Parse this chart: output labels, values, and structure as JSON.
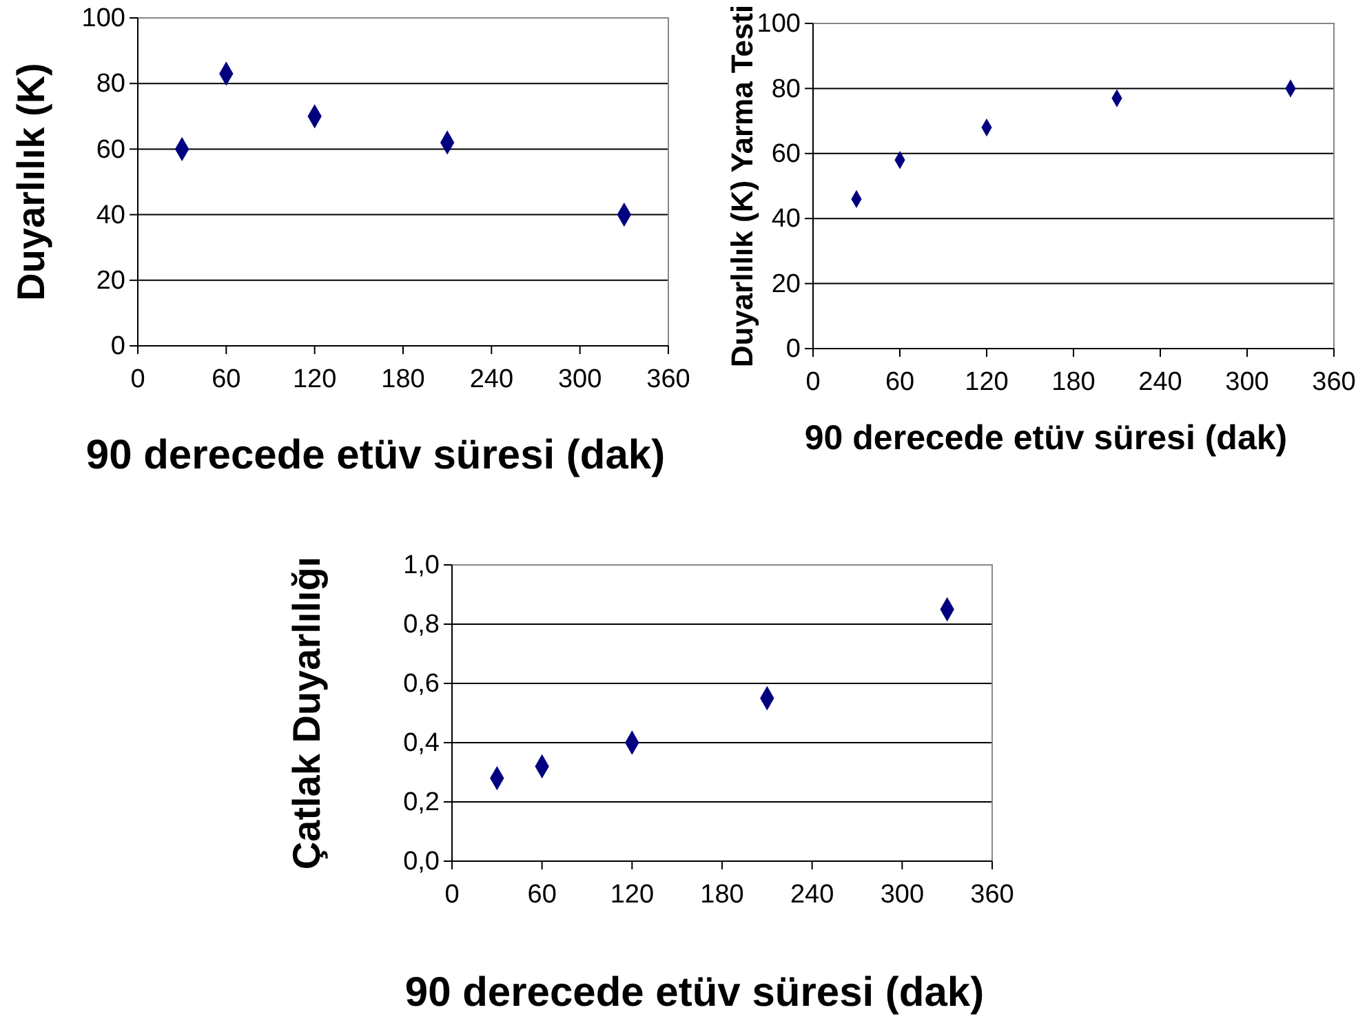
{
  "chart_data": [
    {
      "type": "scatter",
      "xlabel": "90 derecede etüv süresi (dak)",
      "ylabel": "Duyarlılık (K)",
      "x": [
        30,
        60,
        120,
        210,
        330
      ],
      "series": [
        {
          "color": "#000080",
          "values": [
            60,
            83,
            70,
            62,
            40
          ]
        }
      ],
      "xlim": [
        0,
        360
      ],
      "xticks": [
        0,
        60,
        120,
        180,
        240,
        300,
        360
      ],
      "ylim": [
        0,
        100
      ],
      "yticks": [
        0,
        20,
        40,
        60,
        80,
        100
      ],
      "grid": "y",
      "marker": "diamond"
    },
    {
      "type": "scatter",
      "xlabel": "90 derecede etüv süresi (dak)",
      "ylabel": "Duyarlılık (K) Yarma Testi",
      "x": [
        30,
        60,
        120,
        210,
        330
      ],
      "series": [
        {
          "color": "#000080",
          "values": [
            46,
            58,
            68,
            77,
            80
          ]
        }
      ],
      "xlim": [
        0,
        360
      ],
      "xticks": [
        0,
        60,
        120,
        180,
        240,
        300,
        360
      ],
      "ylim": [
        0,
        100
      ],
      "yticks": [
        0,
        20,
        40,
        60,
        80,
        100
      ],
      "grid": "y",
      "marker": "diamond"
    },
    {
      "type": "scatter",
      "xlabel": "90 derecede etüv süresi (dak)",
      "ylabel": "Çatlak Duyarlılığı",
      "x": [
        30,
        60,
        120,
        210,
        330
      ],
      "series": [
        {
          "color": "#000080",
          "values": [
            0.28,
            0.32,
            0.4,
            0.55,
            0.85
          ]
        }
      ],
      "xlim": [
        0,
        360
      ],
      "xticks": [
        0,
        60,
        120,
        180,
        240,
        300,
        360
      ],
      "ylim": [
        0,
        1
      ],
      "yticks": [
        {
          "value": 0,
          "label": "0,0"
        },
        {
          "value": 0.2,
          "label": "0,2"
        },
        {
          "value": 0.4,
          "label": "0,4"
        },
        {
          "value": 0.6,
          "label": "0,6"
        },
        {
          "value": 0.8,
          "label": "0,8"
        },
        {
          "value": 1,
          "label": "1,0"
        }
      ],
      "grid": "y",
      "marker": "diamond"
    }
  ]
}
